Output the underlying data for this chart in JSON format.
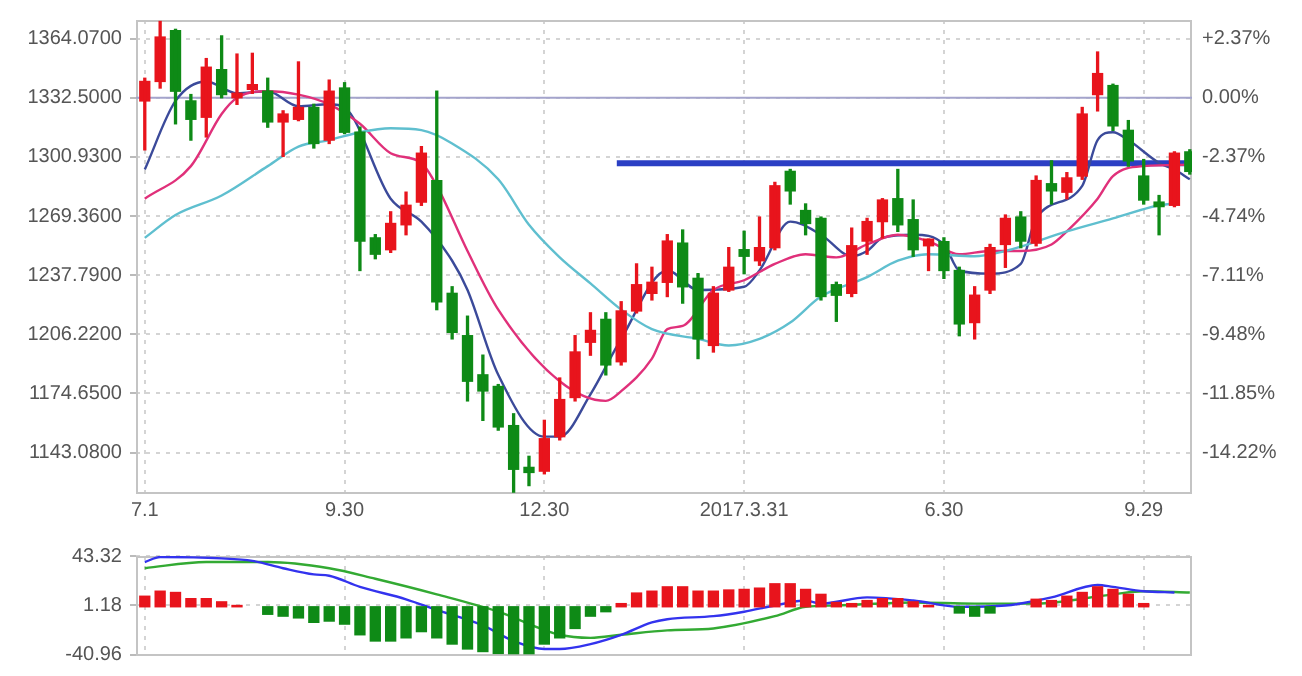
{
  "chart_data": [
    {
      "type": "candlestick",
      "x": [
        "2016-07-01",
        "2016-07-08",
        "2016-07-15",
        "2016-07-22",
        "2016-07-29",
        "2016-08-05",
        "2016-08-12",
        "2016-08-19",
        "2016-08-26",
        "2016-09-02",
        "2016-09-09",
        "2016-09-16",
        "2016-09-23",
        "2016-09-30",
        "2016-10-07",
        "2016-10-14",
        "2016-10-21",
        "2016-10-28",
        "2016-11-04",
        "2016-11-11",
        "2016-11-18",
        "2016-11-25",
        "2016-12-02",
        "2016-12-09",
        "2016-12-16",
        "2016-12-23",
        "2016-12-30",
        "2017-01-06",
        "2017-01-13",
        "2017-01-20",
        "2017-01-27",
        "2017-02-03",
        "2017-02-10",
        "2017-02-17",
        "2017-02-24",
        "2017-03-03",
        "2017-03-10",
        "2017-03-17",
        "2017-03-24",
        "2017-03-31",
        "2017-04-07",
        "2017-04-14",
        "2017-04-21",
        "2017-04-28",
        "2017-05-05",
        "2017-05-12",
        "2017-05-19",
        "2017-05-26",
        "2017-06-02",
        "2017-06-09",
        "2017-06-16",
        "2017-06-23",
        "2017-06-30",
        "2017-07-07",
        "2017-07-14",
        "2017-07-21",
        "2017-07-28",
        "2017-08-04",
        "2017-08-11",
        "2017-08-18",
        "2017-08-25",
        "2017-09-01",
        "2017-09-08",
        "2017-09-15",
        "2017-09-22",
        "2017-09-29",
        "2017-10-06",
        "2017-10-13",
        "2017-10-20"
      ],
      "ohlc": [
        [
          1330.8,
          1342.9,
          1304.7,
          1341.2
        ],
        [
          1341.2,
          1373.2,
          1337.7,
          1364.9
        ],
        [
          1368.3,
          1369.0,
          1318.6,
          1336.0
        ],
        [
          1330.8,
          1334.2,
          1309.9,
          1321.0
        ],
        [
          1322.1,
          1353.4,
          1311.6,
          1348.8
        ],
        [
          1347.5,
          1365.5,
          1332.5,
          1334.2
        ],
        [
          1332.5,
          1355.8,
          1329.0,
          1334.9
        ],
        [
          1337.0,
          1356.2,
          1334.9,
          1339.5
        ],
        [
          1336.0,
          1342.9,
          1316.8,
          1319.6
        ],
        [
          1319.6,
          1325.5,
          1301.2,
          1323.8
        ],
        [
          1321.0,
          1351.6,
          1320.3,
          1327.3
        ],
        [
          1327.3,
          1329.0,
          1305.7,
          1308.1
        ],
        [
          1309.9,
          1341.9,
          1308.1,
          1336.0
        ],
        [
          1337.7,
          1340.5,
          1313.4,
          1314.1
        ],
        [
          1314.1,
          1316.8,
          1240.3,
          1256.0
        ],
        [
          1257.7,
          1259.4,
          1246.6,
          1249.0
        ],
        [
          1251.4,
          1271.6,
          1250.0,
          1265.4
        ],
        [
          1264.7,
          1282.1,
          1259.4,
          1275.1
        ],
        [
          1276.8,
          1306.4,
          1275.1,
          1302.9
        ],
        [
          1288.3,
          1336.0,
          1219.4,
          1223.6
        ],
        [
          1228.1,
          1231.6,
          1203.8,
          1207.3
        ],
        [
          1205.5,
          1215.9,
          1170.7,
          1181.2
        ],
        [
          1184.6,
          1195.1,
          1160.3,
          1176.0
        ],
        [
          1178.4,
          1179.4,
          1155.1,
          1156.8
        ],
        [
          1157.5,
          1163.8,
          1122.0,
          1134.2
        ],
        [
          1135.2,
          1141.1,
          1125.5,
          1132.5
        ],
        [
          1133.2,
          1160.3,
          1131.8,
          1150.5
        ],
        [
          1151.6,
          1182.9,
          1149.9,
          1171.4
        ],
        [
          1172.5,
          1205.5,
          1170.7,
          1196.8
        ],
        [
          1202.0,
          1217.7,
          1195.1,
          1208.3
        ],
        [
          1214.2,
          1217.7,
          1184.6,
          1189.9
        ],
        [
          1191.6,
          1223.6,
          1189.9,
          1218.7
        ],
        [
          1218.7,
          1243.8,
          1217.7,
          1232.7
        ],
        [
          1228.1,
          1242.0,
          1224.6,
          1234.0
        ],
        [
          1234.0,
          1259.4,
          1226.4,
          1256.0
        ],
        [
          1254.9,
          1261.9,
          1222.9,
          1231.6
        ],
        [
          1236.1,
          1238.6,
          1193.3,
          1203.8
        ],
        [
          1200.3,
          1231.6,
          1196.8,
          1228.1
        ],
        [
          1229.9,
          1252.5,
          1229.2,
          1242.0
        ],
        [
          1251.4,
          1261.2,
          1238.6,
          1247.9
        ],
        [
          1245.5,
          1268.8,
          1243.1,
          1252.5
        ],
        [
          1252.5,
          1287.3,
          1251.4,
          1285.5
        ],
        [
          1293.2,
          1294.2,
          1275.8,
          1282.8
        ],
        [
          1272.3,
          1275.8,
          1259.4,
          1265.4
        ],
        [
          1268.1,
          1268.8,
          1224.6,
          1226.4
        ],
        [
          1232.7,
          1234.0,
          1213.2,
          1227.1
        ],
        [
          1228.1,
          1262.9,
          1226.4,
          1253.5
        ],
        [
          1256.0,
          1268.1,
          1249.0,
          1266.4
        ],
        [
          1266.4,
          1278.6,
          1257.7,
          1277.9
        ],
        [
          1278.6,
          1294.2,
          1261.2,
          1264.7
        ],
        [
          1267.4,
          1277.9,
          1247.9,
          1251.4
        ],
        [
          1253.5,
          1257.0,
          1240.3,
          1257.0
        ],
        [
          1255.7,
          1257.7,
          1236.1,
          1240.3
        ],
        [
          1240.3,
          1242.0,
          1205.5,
          1211.8
        ],
        [
          1212.5,
          1231.6,
          1203.8,
          1227.1
        ],
        [
          1229.9,
          1254.2,
          1228.1,
          1252.5
        ],
        [
          1254.2,
          1269.9,
          1242.0,
          1268.1
        ],
        [
          1268.8,
          1271.6,
          1252.5,
          1256.0
        ],
        [
          1254.9,
          1290.7,
          1253.5,
          1288.3
        ],
        [
          1286.6,
          1298.8,
          1275.8,
          1282.8
        ],
        [
          1282.1,
          1292.5,
          1278.6,
          1289.7
        ],
        [
          1290.7,
          1327.3,
          1289.0,
          1323.8
        ],
        [
          1334.2,
          1356.9,
          1325.5,
          1345.4
        ],
        [
          1339.0,
          1339.7,
          1315.1,
          1317.5
        ],
        [
          1315.1,
          1320.3,
          1296.0,
          1298.8
        ],
        [
          1290.7,
          1299.5,
          1275.8,
          1277.9
        ],
        [
          1276.8,
          1280.3,
          1259.4,
          1274.4
        ],
        [
          1275.1,
          1303.6,
          1274.4,
          1302.9
        ],
        [
          1303.6,
          1304.7,
          1291.8,
          1293.2
        ]
      ],
      "colors": [
        "#e8141c",
        "#e8141c",
        "#0e8a16",
        "#0e8a16",
        "#e8141c",
        "#0e8a16",
        "#e8141c",
        "#e8141c",
        "#0e8a16",
        "#e8141c",
        "#e8141c",
        "#0e8a16",
        "#e8141c",
        "#0e8a16",
        "#0e8a16",
        "#0e8a16",
        "#e8141c",
        "#e8141c",
        "#e8141c",
        "#0e8a16",
        "#0e8a16",
        "#0e8a16",
        "#0e8a16",
        "#0e8a16",
        "#0e8a16",
        "#0e8a16",
        "#e8141c",
        "#e8141c",
        "#e8141c",
        "#e8141c",
        "#0e8a16",
        "#e8141c",
        "#e8141c",
        "#e8141c",
        "#e8141c",
        "#0e8a16",
        "#0e8a16",
        "#e8141c",
        "#e8141c",
        "#0e8a16",
        "#e8141c",
        "#e8141c",
        "#0e8a16",
        "#0e8a16",
        "#0e8a16",
        "#0e8a16",
        "#e8141c",
        "#e8141c",
        "#e8141c",
        "#0e8a16",
        "#0e8a16",
        "#e8141c",
        "#0e8a16",
        "#0e8a16",
        "#e8141c",
        "#e8141c",
        "#e8141c",
        "#0e8a16",
        "#e8141c",
        "#0e8a16",
        "#e8141c",
        "#e8141c",
        "#e8141c",
        "#0e8a16",
        "#0e8a16",
        "#0e8a16",
        "#0e8a16",
        "#e8141c",
        "#0e8a16"
      ],
      "series": [
        {
          "type": "line",
          "color": "#5fbfcf",
          "x": [
            "2016-07-01",
            "2016-07-15",
            "2016-08-05",
            "2016-08-26",
            "2016-09-09",
            "2016-09-23",
            "2016-10-07",
            "2016-10-21",
            "2016-11-04",
            "2016-11-18",
            "2016-12-09",
            "2016-12-23",
            "2017-01-06",
            "2017-01-20",
            "2017-02-03",
            "2017-02-17",
            "2017-03-10",
            "2017-03-24",
            "2017-04-07",
            "2017-04-21",
            "2017-05-05",
            "2017-05-26",
            "2017-06-09",
            "2017-06-23",
            "2017-07-14",
            "2017-07-28",
            "2017-08-25",
            "2017-09-15",
            "2017-10-06",
            "2017-10-13"
          ],
          "values": [
            1257.7,
            1269.9,
            1280.3,
            1296.0,
            1306.4,
            1309.9,
            1314.1,
            1316.2,
            1315.2,
            1308.1,
            1289.0,
            1264.7,
            1247.3,
            1233.4,
            1219.4,
            1209.0,
            1203.8,
            1200.3,
            1203.8,
            1212.5,
            1226.4,
            1236.8,
            1245.5,
            1249.0,
            1247.9,
            1250.7,
            1261.2,
            1268.1,
            1275.1,
            1276.1
          ]
        },
        {
          "type": "line",
          "color": "#e0307a",
          "x": [
            "2016-07-01",
            "2016-07-22",
            "2016-08-05",
            "2016-08-12",
            "2016-08-26",
            "2016-09-09",
            "2016-09-23",
            "2016-10-07",
            "2016-10-21",
            "2016-11-04",
            "2016-11-11",
            "2016-11-25",
            "2016-12-09",
            "2017-01-06",
            "2017-01-27",
            "2017-02-03",
            "2017-02-17",
            "2017-02-24",
            "2017-03-03",
            "2017-03-17",
            "2017-03-31",
            "2017-04-14",
            "2017-04-28",
            "2017-05-12",
            "2017-05-26",
            "2017-06-09",
            "2017-06-23",
            "2017-07-07",
            "2017-07-21",
            "2017-08-04",
            "2017-08-18",
            "2017-08-25",
            "2017-09-08",
            "2017-09-15",
            "2017-09-29",
            "2017-10-20"
          ],
          "values": [
            1278.6,
            1296.0,
            1323.8,
            1332.5,
            1336.0,
            1334.2,
            1329.0,
            1318.6,
            1302.9,
            1297.7,
            1285.5,
            1250.7,
            1219.4,
            1181.2,
            1170.7,
            1175.9,
            1193.3,
            1209.0,
            1210.7,
            1229.9,
            1235.1,
            1243.8,
            1249.0,
            1247.3,
            1254.2,
            1259.4,
            1255.9,
            1249.0,
            1250.7,
            1250.7,
            1254.2,
            1261.2,
            1278.6,
            1290.7,
            1296.0,
            1296.7
          ]
        },
        {
          "type": "line",
          "color": "#3b4a9a",
          "x": [
            "2016-07-01",
            "2016-07-15",
            "2016-07-29",
            "2016-08-12",
            "2016-08-26",
            "2016-09-09",
            "2016-09-23",
            "2016-09-30",
            "2016-10-21",
            "2016-11-04",
            "2016-11-18",
            "2016-11-25",
            "2016-12-09",
            "2016-12-30",
            "2017-01-06",
            "2017-01-20",
            "2017-02-03",
            "2017-02-24",
            "2017-03-10",
            "2017-03-31",
            "2017-04-07",
            "2017-04-21",
            "2017-05-05",
            "2017-05-19",
            "2017-05-26",
            "2017-06-02",
            "2017-06-16",
            "2017-06-30",
            "2017-07-07",
            "2017-07-21",
            "2017-08-04",
            "2017-08-11",
            "2017-09-01",
            "2017-09-08",
            "2017-09-15",
            "2017-09-22",
            "2017-10-06",
            "2017-10-13",
            "2017-10-20"
          ],
          "values": [
            1294.2,
            1330.8,
            1341.2,
            1334.9,
            1336.0,
            1328.0,
            1329.0,
            1327.3,
            1278.6,
            1266.4,
            1245.5,
            1229.9,
            1184.6,
            1151.6,
            1151.6,
            1174.2,
            1203.8,
            1240.3,
            1229.9,
            1231.6,
            1240.3,
            1266.4,
            1259.4,
            1248.0,
            1250.7,
            1257.7,
            1259.4,
            1254.2,
            1240.3,
            1238.6,
            1243.8,
            1268.1,
            1285.5,
            1309.9,
            1314.1,
            1309.9,
            1297.7,
            1294.2,
            1289.0
          ]
        },
        {
          "type": "line",
          "color": "#2b3fc4",
          "x": [
            "2017-02-01",
            "2017-10-21"
          ],
          "values": [
            1297.5,
            1297.5
          ]
        }
      ],
      "ref_lines": [
        {
          "axis": "y",
          "value": 1332.5,
          "color": "#a4a4cc"
        }
      ],
      "xlim": [
        "2016-06-27",
        "2017-10-21"
      ],
      "xticks": [
        {
          "value": "2016-07-01",
          "label": "7.1"
        },
        {
          "value": "2016-09-30",
          "label": "9.30"
        },
        {
          "value": "2016-12-30",
          "label": "12.30"
        },
        {
          "value": "2017-03-31",
          "label": "2017.3.31"
        },
        {
          "value": "2017-06-30",
          "label": "6.30"
        },
        {
          "value": "2017-09-29",
          "label": "9.29"
        }
      ],
      "ylim": [
        1121,
        1374
      ],
      "yticks": [
        {
          "value": 1364.07,
          "label": "1364.0700"
        },
        {
          "value": 1332.5,
          "label": "1332.5000"
        },
        {
          "value": 1300.93,
          "label": "1300.9300"
        },
        {
          "value": 1269.36,
          "label": "1269.3600"
        },
        {
          "value": 1237.79,
          "label": "1237.7900"
        },
        {
          "value": 1206.22,
          "label": "1206.2200"
        },
        {
          "value": 1174.65,
          "label": "1174.6500"
        },
        {
          "value": 1143.08,
          "label": "1143.0800"
        }
      ],
      "y2lim": [
        -15.87,
        3.11
      ],
      "y2ticks": [
        {
          "value": 2.37,
          "label": "+2.37%"
        },
        {
          "value": 0,
          "label": "0.00%"
        },
        {
          "value": -2.37,
          "label": "-2.37%"
        },
        {
          "value": -4.74,
          "label": "-4.74%"
        },
        {
          "value": -7.11,
          "label": "-7.11%"
        },
        {
          "value": -9.48,
          "label": "-9.48%"
        },
        {
          "value": -11.85,
          "label": "-11.85%"
        },
        {
          "value": -14.22,
          "label": "-14.22%"
        }
      ],
      "grid": true
    },
    {
      "type": "bar",
      "x": [
        "2016-07-01",
        "2016-07-08",
        "2016-07-15",
        "2016-07-22",
        "2016-07-29",
        "2016-08-05",
        "2016-08-12",
        "2016-08-19",
        "2016-08-26",
        "2016-09-02",
        "2016-09-09",
        "2016-09-16",
        "2016-09-23",
        "2016-09-30",
        "2016-10-07",
        "2016-10-14",
        "2016-10-21",
        "2016-10-28",
        "2016-11-04",
        "2016-11-11",
        "2016-11-18",
        "2016-11-25",
        "2016-12-02",
        "2016-12-09",
        "2016-12-16",
        "2016-12-23",
        "2016-12-30",
        "2017-01-06",
        "2017-01-13",
        "2017-01-20",
        "2017-01-27",
        "2017-02-03",
        "2017-02-10",
        "2017-02-17",
        "2017-02-24",
        "2017-03-03",
        "2017-03-10",
        "2017-03-17",
        "2017-03-24",
        "2017-03-31",
        "2017-04-07",
        "2017-04-14",
        "2017-04-21",
        "2017-04-28",
        "2017-05-05",
        "2017-05-12",
        "2017-05-19",
        "2017-05-26",
        "2017-06-02",
        "2017-06-09",
        "2017-06-16",
        "2017-06-23",
        "2017-06-30",
        "2017-07-07",
        "2017-07-14",
        "2017-07-21",
        "2017-07-28",
        "2017-08-04",
        "2017-08-11",
        "2017-08-18",
        "2017-08-25",
        "2017-09-01",
        "2017-09-08",
        "2017-09-15",
        "2017-09-22",
        "2017-09-29"
      ],
      "series": [
        {
          "type": "bar",
          "values": [
            9.0,
            13.3,
            12.2,
            6.9,
            6.9,
            4.2,
            1.1,
            null,
            -6.4,
            -8.0,
            -9.5,
            -13.3,
            -12.2,
            -14.8,
            -23.9,
            -29.2,
            -29.2,
            -26.5,
            -21.2,
            -26.5,
            -31.8,
            -36.0,
            -38.2,
            -39.8,
            -40.0,
            -40.0,
            -31.8,
            -26.5,
            -18.5,
            -8.0,
            -4.2,
            2.7,
            11.7,
            13.3,
            17.0,
            17.0,
            13.3,
            13.3,
            14.3,
            14.8,
            15.9,
            19.6,
            19.6,
            14.8,
            10.6,
            3.7,
            2.7,
            5.3,
            6.9,
            6.9,
            4.2,
            1.1,
            null,
            -5.3,
            -8.0,
            -5.3,
            null,
            null,
            6.4,
            5.3,
            9.0,
            12.2,
            17.0,
            14.8,
            10.6,
            2.7
          ],
          "colors": [
            "#e8141c",
            "#e8141c",
            "#e8141c",
            "#e8141c",
            "#e8141c",
            "#e8141c",
            "#e8141c",
            "#e8141c",
            "#0e8a16",
            "#0e8a16",
            "#0e8a16",
            "#0e8a16",
            "#0e8a16",
            "#0e8a16",
            "#0e8a16",
            "#0e8a16",
            "#0e8a16",
            "#0e8a16",
            "#0e8a16",
            "#0e8a16",
            "#0e8a16",
            "#0e8a16",
            "#0e8a16",
            "#0e8a16",
            "#0e8a16",
            "#0e8a16",
            "#0e8a16",
            "#0e8a16",
            "#0e8a16",
            "#0e8a16",
            "#0e8a16",
            "#e8141c",
            "#e8141c",
            "#e8141c",
            "#e8141c",
            "#e8141c",
            "#e8141c",
            "#e8141c",
            "#e8141c",
            "#e8141c",
            "#e8141c",
            "#e8141c",
            "#e8141c",
            "#e8141c",
            "#e8141c",
            "#e8141c",
            "#e8141c",
            "#e8141c",
            "#e8141c",
            "#e8141c",
            "#e8141c",
            "#e8141c",
            "#0e8a16",
            "#0e8a16",
            "#0e8a16",
            "#0e8a16",
            "#e8141c",
            "#e8141c",
            "#e8141c",
            "#e8141c",
            "#e8141c",
            "#e8141c",
            "#e8141c",
            "#e8141c",
            "#e8141c",
            "#e8141c"
          ]
        },
        {
          "type": "line",
          "color": "#3333ee",
          "x": [
            "2016-07-01",
            "2016-07-08",
            "2016-08-05",
            "2016-08-19",
            "2016-09-02",
            "2016-09-16",
            "2016-09-23",
            "2016-10-07",
            "2016-10-28",
            "2016-11-11",
            "2016-12-02",
            "2016-12-16",
            "2016-12-30",
            "2017-01-06",
            "2017-01-20",
            "2017-02-03",
            "2017-02-17",
            "2017-02-24",
            "2017-03-17",
            "2017-03-31",
            "2017-04-14",
            "2017-04-28",
            "2017-05-05",
            "2017-05-26",
            "2017-06-16",
            "2017-07-07",
            "2017-07-28",
            "2017-08-18",
            "2017-09-08",
            "2017-09-15",
            "2017-09-29",
            "2017-10-13"
          ],
          "values": [
            38.2,
            42.4,
            41.3,
            39.2,
            32.9,
            27.6,
            26.5,
            17.0,
            6.4,
            -2.7,
            -15.9,
            -29.2,
            -36.0,
            -36.0,
            -31.8,
            -23.9,
            -13.3,
            -10.6,
            -8.0,
            -4.2,
            1.1,
            5.3,
            2.7,
            8.0,
            5.3,
            0,
            1.1,
            8.0,
            18.6,
            17.0,
            13.3,
            12.2
          ]
        },
        {
          "type": "line",
          "color": "#33aa33",
          "x": [
            "2016-07-01",
            "2016-07-29",
            "2016-08-26",
            "2016-09-23",
            "2016-10-14",
            "2016-11-11",
            "2016-12-09",
            "2017-01-06",
            "2017-01-20",
            "2017-02-03",
            "2017-02-24",
            "2017-03-17",
            "2017-04-14",
            "2017-04-28",
            "2017-05-12",
            "2017-06-16",
            "2017-07-14",
            "2017-08-11",
            "2017-09-15",
            "2017-09-29",
            "2017-10-20"
          ],
          "values": [
            32.9,
            38.2,
            38.2,
            32.9,
            23.9,
            10.6,
            -4.2,
            -23.9,
            -26.5,
            -23.9,
            -20.1,
            -18.5,
            -8.0,
            0,
            1.1,
            3.7,
            2.7,
            2.7,
            10.6,
            13.3,
            12.2
          ]
        }
      ],
      "xlim": [
        "2016-06-27",
        "2017-10-21"
      ],
      "xticks": [
        {
          "value": "2016-07-01",
          "label": null
        },
        {
          "value": "2016-09-30",
          "label": null
        },
        {
          "value": "2016-12-30",
          "label": null
        },
        {
          "value": "2017-03-31",
          "label": null
        },
        {
          "value": "2017-06-30",
          "label": null
        },
        {
          "value": "2017-09-29",
          "label": null
        }
      ],
      "ylim": [
        -42,
        43.32
      ],
      "yticks": [
        43.32,
        1.18,
        -40.96
      ],
      "tick_labels": "y",
      "grid": true
    }
  ]
}
